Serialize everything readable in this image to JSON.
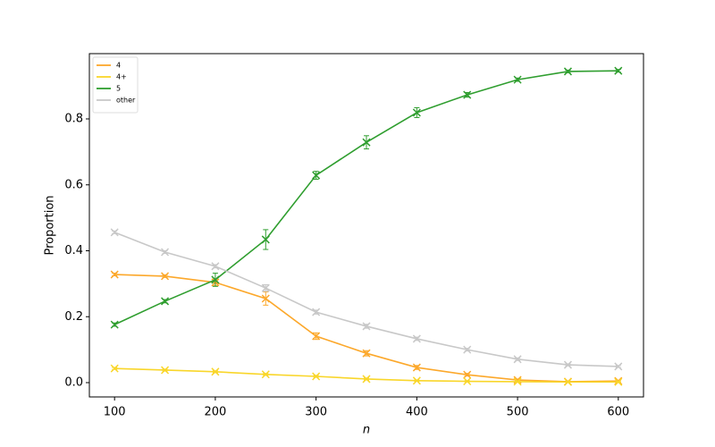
{
  "chart_data": {
    "type": "line",
    "x_label": "n",
    "y_label": "Proportion",
    "x": [
      100,
      150,
      200,
      250,
      300,
      350,
      400,
      450,
      500,
      550,
      600
    ],
    "series": [
      {
        "name": "4",
        "color": "#fca82b",
        "values": [
          0.328,
          0.323,
          0.304,
          0.255,
          0.141,
          0.089,
          0.046,
          0.024,
          0.008,
          0.003,
          0.005
        ],
        "errors": [
          0.004,
          0.004,
          0.01,
          0.02,
          0.01,
          0.008,
          0.006,
          0.004,
          0.003,
          0.002,
          0.002
        ]
      },
      {
        "name": "4+",
        "color": "#f9d62a",
        "values": [
          0.043,
          0.038,
          0.033,
          0.025,
          0.019,
          0.011,
          0.006,
          0.004,
          0.003,
          0.002,
          0.002
        ],
        "errors": [
          0.003,
          0.003,
          0.003,
          0.003,
          0.003,
          0.003,
          0.002,
          0.002,
          0.002,
          0.001,
          0.001
        ]
      },
      {
        "name": "5",
        "color": "#2f9e2f",
        "values": [
          0.176,
          0.247,
          0.312,
          0.434,
          0.629,
          0.729,
          0.819,
          0.873,
          0.919,
          0.944,
          0.946
        ],
        "errors": [
          0.005,
          0.005,
          0.02,
          0.03,
          0.012,
          0.02,
          0.015,
          0.007,
          0.005,
          0.004,
          0.004
        ]
      },
      {
        "name": "other",
        "color": "#c8c8c8",
        "values": [
          0.456,
          0.396,
          0.353,
          0.287,
          0.214,
          0.171,
          0.133,
          0.1,
          0.071,
          0.054,
          0.049
        ],
        "errors": [
          0.004,
          0.004,
          0.005,
          0.01,
          0.006,
          0.006,
          0.005,
          0.004,
          0.004,
          0.003,
          0.003
        ]
      }
    ],
    "xlim": [
      75,
      625
    ],
    "ylim": [
      -0.0434,
      0.998
    ],
    "xticks": [
      100,
      200,
      300,
      400,
      500,
      600
    ],
    "yticks": [
      {
        "value": 0,
        "label": "0.0"
      },
      0.2,
      0.4,
      0.6,
      0.8
    ],
    "legend": "upper left",
    "marker": "x"
  }
}
